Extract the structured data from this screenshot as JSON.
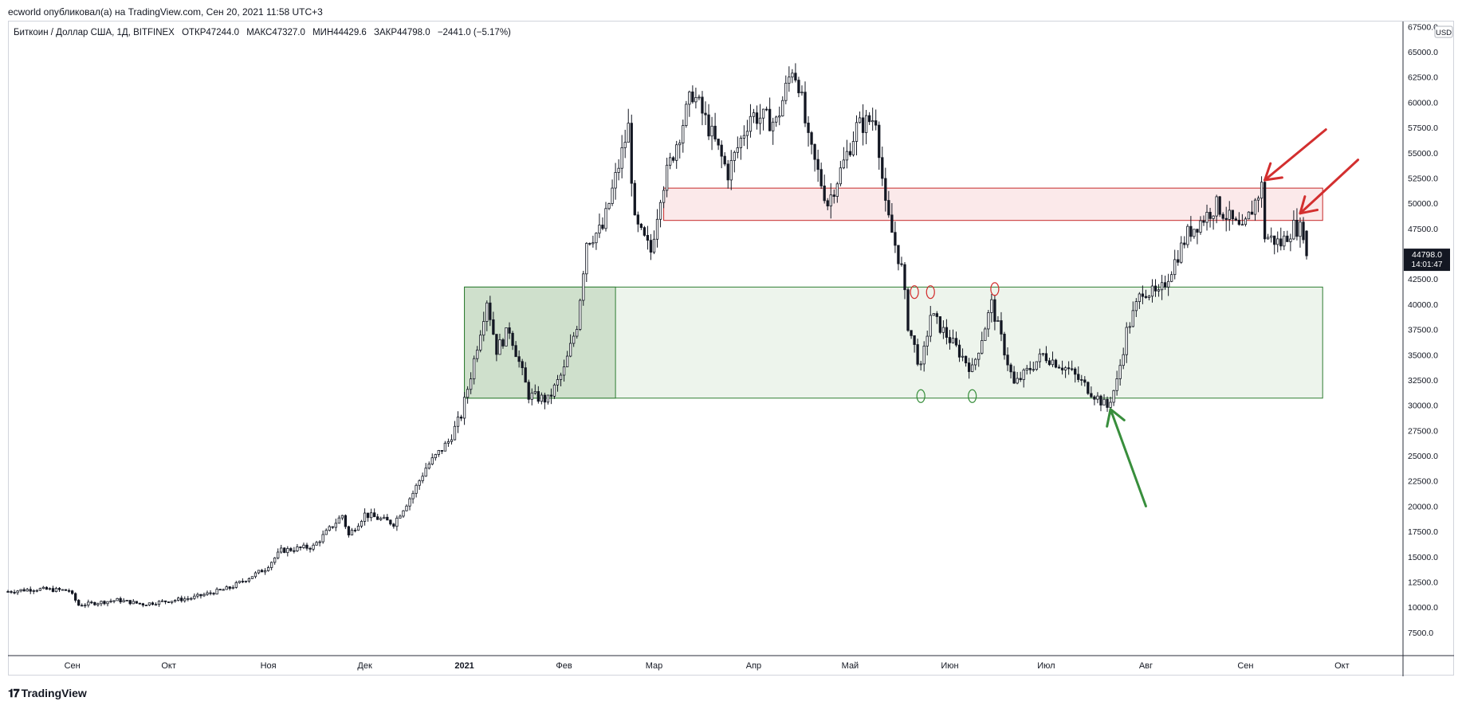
{
  "header": {
    "published_line": "ecworld опубликовал(а) на TradingView.com, Сен 20, 2021 11:58 UTC+3"
  },
  "legend": {
    "symbol": "Биткоин / Доллар США, 1Д, BITFINEX",
    "open_label": "ОТКР",
    "open_value": "47244.0",
    "high_label": "МАКС",
    "high_value": "47327.0",
    "low_label": "МИН",
    "low_value": "44429.6",
    "close_label": "ЗАКР",
    "close_value": "44798.0",
    "change": "−2441.0 (−5.17%)"
  },
  "currency_badge": "USD",
  "price_badge": {
    "price": "44798.0",
    "countdown": "14:01:47"
  },
  "footer": {
    "logo_text": "TradingView"
  },
  "colors": {
    "candle_up": "#ffffff",
    "candle_down": "#131722",
    "red_zone_fill": "#fbe9ea",
    "red_zone_stroke": "#c62828",
    "green_zone_fill": "#edf4ec",
    "green_zone_dark_fill": "#cfe0cc",
    "green_zone_stroke": "#2e7d32",
    "arrow_red": "#d32f2f",
    "arrow_green": "#388e3c"
  },
  "chart_data": {
    "type": "candlestick",
    "y_axis_ticks": [
      "7500.0",
      "10000.0",
      "12500.0",
      "15000.0",
      "17500.0",
      "20000.0",
      "22500.0",
      "25000.0",
      "27500.0",
      "30000.0",
      "32500.0",
      "35000.0",
      "37500.0",
      "40000.0",
      "42500.0",
      "45000.0",
      "47500.0",
      "50000.0",
      "52500.0",
      "55000.0",
      "57500.0",
      "60000.0",
      "62500.0",
      "65000.0",
      "67500.0"
    ],
    "x_axis_ticks": [
      {
        "label": "Сен",
        "date": "2020-09-01",
        "bold": false
      },
      {
        "label": "Окт",
        "date": "2020-10-01",
        "bold": false
      },
      {
        "label": "Ноя",
        "date": "2020-11-01",
        "bold": false
      },
      {
        "label": "Дек",
        "date": "2020-12-01",
        "bold": false
      },
      {
        "label": "2021",
        "date": "2021-01-01",
        "bold": true
      },
      {
        "label": "Фев",
        "date": "2021-02-01",
        "bold": false
      },
      {
        "label": "Мар",
        "date": "2021-03-01",
        "bold": false
      },
      {
        "label": "Апр",
        "date": "2021-04-01",
        "bold": false
      },
      {
        "label": "Май",
        "date": "2021-05-01",
        "bold": false
      },
      {
        "label": "Июн",
        "date": "2021-06-01",
        "bold": false
      },
      {
        "label": "Июл",
        "date": "2021-07-01",
        "bold": false
      },
      {
        "label": "Авг",
        "date": "2021-08-01",
        "bold": false
      },
      {
        "label": "Сен",
        "date": "2021-09-01",
        "bold": false
      },
      {
        "label": "Окт",
        "date": "2021-10-01",
        "bold": false
      }
    ],
    "ylim": [
      5200,
      68000
    ],
    "xlim": [
      "2020-08-12",
      "2021-10-20"
    ],
    "close_path": [
      [
        "2020-08-12",
        11550
      ],
      [
        "2020-08-20",
        11800
      ],
      [
        "2020-08-31",
        11650
      ],
      [
        "2020-09-03",
        10200
      ],
      [
        "2020-09-15",
        10700
      ],
      [
        "2020-09-23",
        10300
      ],
      [
        "2020-10-08",
        10900
      ],
      [
        "2020-10-20",
        11900
      ],
      [
        "2020-10-31",
        13800
      ],
      [
        "2020-11-05",
        15600
      ],
      [
        "2020-11-15",
        16000
      ],
      [
        "2020-11-24",
        19100
      ],
      [
        "2020-11-26",
        17100
      ],
      [
        "2020-12-01",
        19200
      ],
      [
        "2020-12-10",
        18300
      ],
      [
        "2020-12-16",
        21300
      ],
      [
        "2020-12-20",
        23800
      ],
      [
        "2020-12-27",
        26400
      ],
      [
        "2020-12-31",
        29000
      ],
      [
        "2021-01-03",
        33000
      ],
      [
        "2021-01-08",
        40500
      ],
      [
        "2021-01-11",
        35500
      ],
      [
        "2021-01-15",
        37500
      ],
      [
        "2021-01-21",
        31000
      ],
      [
        "2021-01-27",
        30500
      ],
      [
        "2021-02-01",
        33500
      ],
      [
        "2021-02-05",
        38000
      ],
      [
        "2021-02-08",
        46300
      ],
      [
        "2021-02-13",
        47500
      ],
      [
        "2021-02-21",
        57500
      ],
      [
        "2021-02-23",
        48000
      ],
      [
        "2021-02-28",
        45200
      ],
      [
        "2021-03-03",
        51000
      ],
      [
        "2021-03-13",
        61000
      ],
      [
        "2021-03-18",
        57500
      ],
      [
        "2021-03-24",
        53000
      ],
      [
        "2021-03-31",
        58800
      ],
      [
        "2021-04-08",
        58000
      ],
      [
        "2021-04-13",
        63500
      ],
      [
        "2021-04-15",
        62000
      ],
      [
        "2021-04-18",
        56000
      ],
      [
        "2021-04-24",
        50000
      ],
      [
        "2021-04-29",
        54000
      ],
      [
        "2021-05-03",
        57500
      ],
      [
        "2021-05-09",
        58500
      ],
      [
        "2021-05-12",
        49500
      ],
      [
        "2021-05-17",
        43500
      ],
      [
        "2021-05-19",
        38000
      ],
      [
        "2021-05-23",
        33500
      ],
      [
        "2021-05-26",
        39000
      ],
      [
        "2021-06-01",
        36500
      ],
      [
        "2021-06-08",
        33500
      ],
      [
        "2021-06-14",
        40000
      ],
      [
        "2021-06-21",
        32000
      ],
      [
        "2021-06-30",
        35000
      ],
      [
        "2021-07-08",
        33500
      ],
      [
        "2021-07-20",
        29800
      ],
      [
        "2021-07-23",
        32300
      ],
      [
        "2021-07-26",
        37300
      ],
      [
        "2021-07-31",
        41500
      ],
      [
        "2021-08-05",
        40800
      ],
      [
        "2021-08-14",
        47000
      ],
      [
        "2021-08-23",
        49800
      ],
      [
        "2021-08-31",
        47100
      ],
      [
        "2021-09-06",
        51700
      ],
      [
        "2021-09-07",
        46800
      ],
      [
        "2021-09-12",
        46000
      ],
      [
        "2021-09-16",
        47700
      ],
      [
        "2021-09-19",
        47244
      ],
      [
        "2021-09-20",
        44798
      ]
    ],
    "last_candle": {
      "date": "2021-09-20",
      "open": 47244.0,
      "high": 47327.0,
      "low": 44429.6,
      "close": 44798.0
    },
    "zones": [
      {
        "name": "resistance",
        "start": "2021-03-04",
        "end": "2021-09-25",
        "low": 48300,
        "high": 51500
      },
      {
        "name": "support",
        "start": "2021-01-01",
        "end": "2021-09-25",
        "low": 30700,
        "high": 41700
      },
      {
        "name": "support-early",
        "start": "2021-01-01",
        "end": "2021-02-17",
        "low": 30700,
        "high": 41700
      }
    ],
    "marker_circles": [
      {
        "color": "red",
        "date": "2021-05-21",
        "price": 41200
      },
      {
        "color": "red",
        "date": "2021-05-26",
        "price": 41200
      },
      {
        "color": "red",
        "date": "2021-06-15",
        "price": 41500
      },
      {
        "color": "green",
        "date": "2021-05-23",
        "price": 30900
      },
      {
        "color": "green",
        "date": "2021-06-08",
        "price": 30900
      }
    ],
    "arrows": [
      {
        "color": "red",
        "from": [
          "2021-09-26",
          57300
        ],
        "to": [
          "2021-09-07",
          52300
        ]
      },
      {
        "color": "red",
        "from": [
          "2021-10-06",
          54300
        ],
        "to": [
          "2021-09-18",
          49000
        ]
      },
      {
        "color": "green",
        "from": [
          "2021-08-01",
          20000
        ],
        "to": [
          "2021-07-21",
          29600
        ]
      }
    ]
  }
}
